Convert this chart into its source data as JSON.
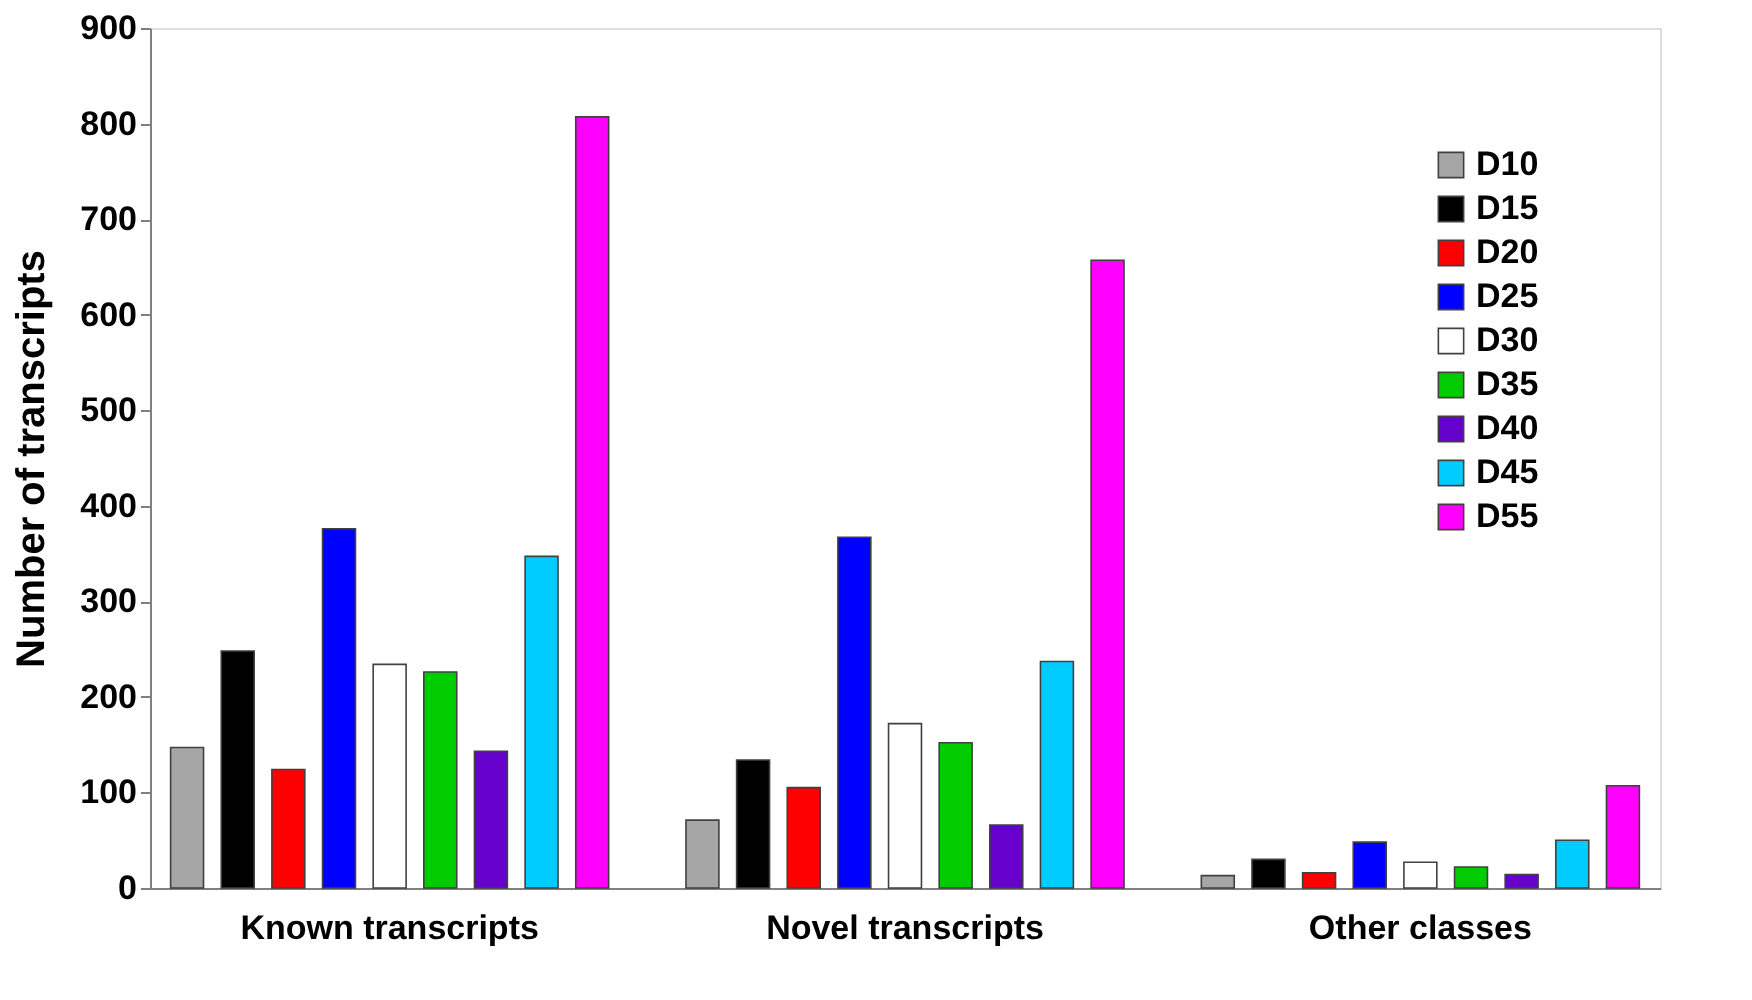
{
  "chart_data": {
    "type": "bar",
    "ylabel": "Number of transcripts",
    "categories": [
      "Known transcripts",
      "Novel transcripts",
      "Other classes"
    ],
    "series": [
      {
        "name": "D10",
        "color": "#a6a6a6",
        "values": [
          147,
          71,
          13
        ]
      },
      {
        "name": "D15",
        "color": "#000000",
        "values": [
          248,
          134,
          30
        ]
      },
      {
        "name": "D20",
        "color": "#ff0000",
        "values": [
          124,
          105,
          16
        ]
      },
      {
        "name": "D25",
        "color": "#0000ff",
        "values": [
          376,
          367,
          48
        ]
      },
      {
        "name": "D30",
        "color": "#ffffff",
        "values": [
          234,
          172,
          27
        ]
      },
      {
        "name": "D35",
        "color": "#00cc00",
        "values": [
          226,
          152,
          22
        ]
      },
      {
        "name": "D40",
        "color": "#6600cc",
        "values": [
          143,
          66,
          14
        ]
      },
      {
        "name": "D45",
        "color": "#00ccff",
        "values": [
          347,
          237,
          50
        ]
      },
      {
        "name": "D55",
        "color": "#ff00ff",
        "values": [
          807,
          657,
          107
        ]
      }
    ],
    "ylim": [
      0,
      900
    ],
    "yticks": [
      0,
      100,
      200,
      300,
      400,
      500,
      600,
      700,
      800,
      900
    ],
    "grid": false,
    "legend": "top right"
  }
}
